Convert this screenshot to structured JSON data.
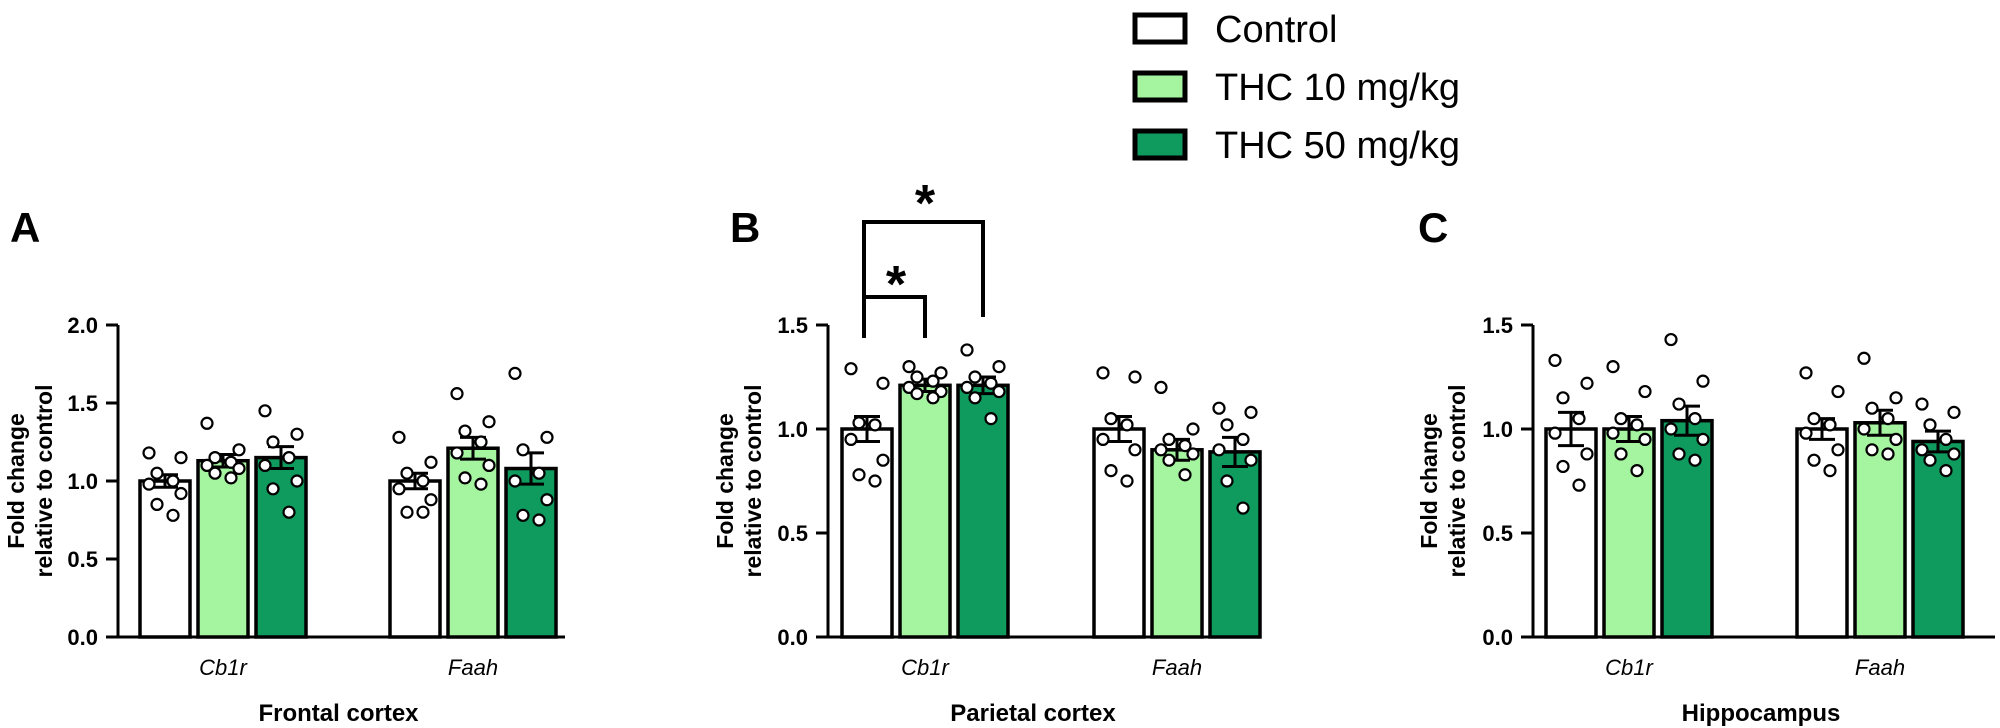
{
  "legend": {
    "entries": [
      {
        "label": "Control",
        "color": "#ffffff"
      },
      {
        "label": "THC 10 mg/kg",
        "color": "#a5f5a0"
      },
      {
        "label": "THC 50 mg/kg",
        "color": "#0f9a5e"
      }
    ]
  },
  "chart_data": [
    {
      "type": "bar",
      "panel": "A",
      "xlabel": "Frontal cortex",
      "ylabel": "Fold change relative to control",
      "ylim": [
        0,
        2.0
      ],
      "yticks": [
        "0.0",
        "0.5",
        "1.0",
        "1.5",
        "2.0"
      ],
      "categories": [
        "Cb1r",
        "Faah"
      ],
      "series": [
        {
          "name": "Control",
          "values": [
            1.0,
            1.0
          ],
          "sem": [
            0.04,
            0.05
          ],
          "points": [
            [
              1.18,
              1.15,
              1.05,
              1.0,
              0.98,
              0.92,
              0.85,
              0.78
            ],
            [
              1.28,
              1.12,
              1.05,
              1.0,
              0.95,
              0.88,
              0.8,
              0.8
            ]
          ]
        },
        {
          "name": "THC 10 mg/kg",
          "values": [
            1.13,
            1.21
          ],
          "sem": [
            0.04,
            0.07
          ],
          "points": [
            [
              1.37,
              1.2,
              1.15,
              1.12,
              1.1,
              1.08,
              1.05,
              1.02
            ],
            [
              1.56,
              1.38,
              1.32,
              1.25,
              1.18,
              1.1,
              1.02,
              0.98
            ]
          ]
        },
        {
          "name": "THC 50 mg/kg",
          "values": [
            1.15,
            1.08
          ],
          "sem": [
            0.07,
            0.1
          ],
          "points": [
            [
              1.45,
              1.3,
              1.25,
              1.15,
              1.1,
              1.0,
              0.95,
              0.8
            ],
            [
              1.69,
              1.28,
              1.2,
              1.05,
              1.0,
              0.88,
              0.78,
              0.75
            ]
          ]
        }
      ]
    },
    {
      "type": "bar",
      "panel": "B",
      "xlabel": "Parietal cortex",
      "ylabel": "Fold change relative to control",
      "ylim": [
        0,
        1.5
      ],
      "yticks": [
        "0.0",
        "0.5",
        "1.0",
        "1.5"
      ],
      "categories": [
        "Cb1r",
        "Faah"
      ],
      "series": [
        {
          "name": "Control",
          "values": [
            1.0,
            1.0
          ],
          "sem": [
            0.06,
            0.06
          ],
          "points": [
            [
              1.29,
              1.22,
              1.03,
              1.02,
              0.95,
              0.85,
              0.78,
              0.75
            ],
            [
              1.27,
              1.25,
              1.05,
              1.02,
              0.95,
              0.9,
              0.8,
              0.75
            ]
          ]
        },
        {
          "name": "THC 10 mg/kg",
          "values": [
            1.21,
            0.9
          ],
          "sem": [
            0.03,
            0.05
          ],
          "points": [
            [
              1.3,
              1.27,
              1.25,
              1.23,
              1.2,
              1.18,
              1.17,
              1.15
            ],
            [
              1.2,
              1.0,
              0.95,
              0.92,
              0.9,
              0.88,
              0.85,
              0.78
            ]
          ]
        },
        {
          "name": "THC 50 mg/kg",
          "values": [
            1.21,
            0.89
          ],
          "sem": [
            0.04,
            0.07
          ],
          "points": [
            [
              1.38,
              1.3,
              1.25,
              1.22,
              1.2,
              1.18,
              1.15,
              1.05
            ],
            [
              1.1,
              1.08,
              1.02,
              0.95,
              0.9,
              0.85,
              0.75,
              0.62
            ]
          ]
        }
      ],
      "significance": [
        {
          "from": "Control",
          "to": "THC 10 mg/kg",
          "category": "Cb1r",
          "label": "*"
        },
        {
          "from": "Control",
          "to": "THC 50 mg/kg",
          "category": "Cb1r",
          "label": "*"
        }
      ]
    },
    {
      "type": "bar",
      "panel": "C",
      "xlabel": "Hippocampus",
      "ylabel": "Fold change relative to control",
      "ylim": [
        0,
        1.5
      ],
      "yticks": [
        "0.0",
        "0.5",
        "1.0",
        "1.5"
      ],
      "categories": [
        "Cb1r",
        "Faah"
      ],
      "series": [
        {
          "name": "Control",
          "values": [
            1.0,
            1.0
          ],
          "sem": [
            0.08,
            0.05
          ],
          "points": [
            [
              1.33,
              1.22,
              1.15,
              1.05,
              0.98,
              0.88,
              0.82,
              0.73
            ],
            [
              1.27,
              1.18,
              1.05,
              1.02,
              0.98,
              0.9,
              0.85,
              0.8
            ]
          ]
        },
        {
          "name": "THC 10 mg/kg",
          "values": [
            1.0,
            1.03
          ],
          "sem": [
            0.06,
            0.06
          ],
          "points": [
            [
              1.3,
              1.18,
              1.05,
              1.02,
              0.98,
              0.95,
              0.88,
              0.8
            ],
            [
              1.34,
              1.15,
              1.1,
              1.05,
              1.0,
              0.95,
              0.9,
              0.88
            ]
          ]
        },
        {
          "name": "THC 50 mg/kg",
          "values": [
            1.04,
            0.94
          ],
          "sem": [
            0.07,
            0.05
          ],
          "points": [
            [
              1.43,
              1.23,
              1.12,
              1.05,
              1.0,
              0.95,
              0.88,
              0.85
            ],
            [
              1.12,
              1.08,
              1.02,
              0.95,
              0.9,
              0.88,
              0.85,
              0.8
            ]
          ]
        }
      ]
    }
  ]
}
